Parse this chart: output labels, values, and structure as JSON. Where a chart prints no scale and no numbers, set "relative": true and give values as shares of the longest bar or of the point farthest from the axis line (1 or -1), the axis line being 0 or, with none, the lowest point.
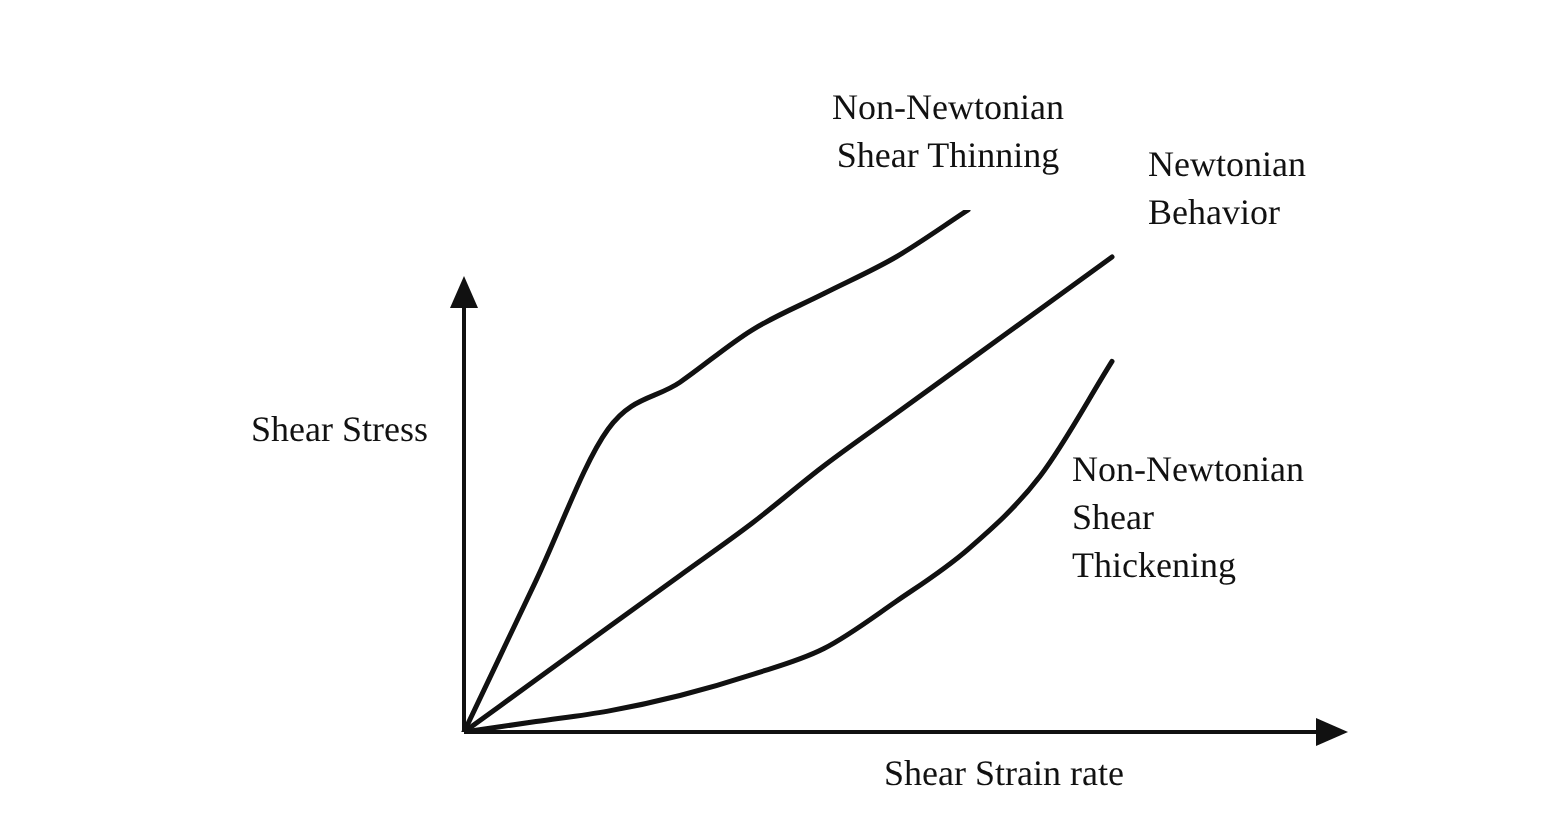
{
  "chart_data": {
    "type": "line",
    "relative": true,
    "xlabel": "Shear Strain rate",
    "ylabel": "Shear Stress",
    "legend": false,
    "grid": false,
    "marker": "none",
    "categories": [
      null,
      null,
      null,
      null,
      null,
      null,
      null,
      null,
      null,
      null,
      null,
      null
    ],
    "series": [
      {
        "name": "Non-Newtonian Shear Thinning",
        "color": "#111111",
        "values": [
          0,
          0.29,
          0.58,
          0.67,
          0.77,
          0.84,
          0.91,
          1,
          null,
          null,
          null,
          null
        ]
      },
      {
        "name": "Newtonian Behavior",
        "color": "#111111",
        "values": [
          0,
          0.1,
          0.2,
          0.3,
          0.4,
          0.51,
          0.61,
          0.71,
          0.81,
          0.91,
          null,
          null
        ]
      },
      {
        "name": "Non-Newtonian Shear Thickening",
        "color": "#111111",
        "values": [
          0,
          0.02,
          0.04,
          0.07,
          0.11,
          0.16,
          0.25,
          0.35,
          0.49,
          0.71,
          null,
          null
        ]
      }
    ]
  }
}
